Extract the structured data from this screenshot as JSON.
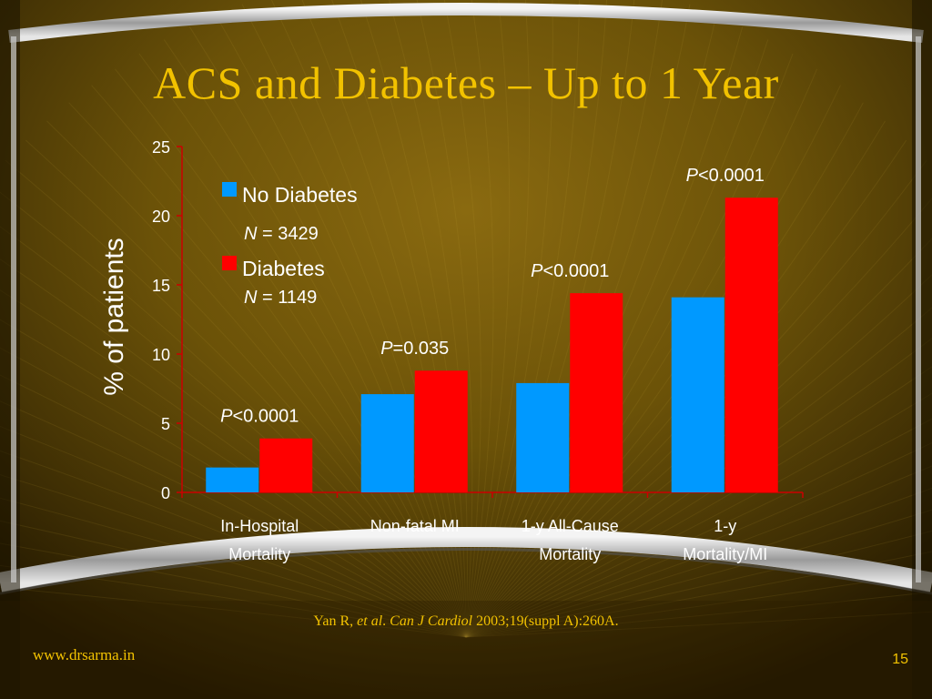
{
  "slide": {
    "title": "ACS and Diabetes – Up to 1 Year",
    "source_parts": [
      "Yan R, ",
      "et al",
      ". ",
      "Can J Cardiol",
      " 2003;19(suppl A):260A."
    ],
    "footer_url": "www.drsarma.in",
    "page_number": "15",
    "colors": {
      "title": "#f2c200",
      "axis": "#cc0000",
      "text": "#ffffff"
    }
  },
  "chart_data": {
    "type": "bar",
    "ylabel": "% of patients",
    "ylim": [
      0,
      25
    ],
    "yticks": [
      "0",
      "5",
      "10",
      "15",
      "20",
      "25"
    ],
    "categories": [
      [
        "In-Hospital",
        "Mortality"
      ],
      [
        "Non-fatal MI",
        ""
      ],
      [
        "1-y All-Cause",
        "Mortality"
      ],
      [
        "1-y",
        "Mortality/MI"
      ]
    ],
    "series": [
      {
        "name": "No Diabetes",
        "n_label": "N",
        "n_value": " = 3429",
        "color": "#0099ff",
        "values": [
          1.8,
          7.1,
          7.9,
          14.1
        ]
      },
      {
        "name": "Diabetes",
        "n_label": "N",
        "n_value": " = 1149",
        "color": "#ff0000",
        "values": [
          3.9,
          8.8,
          14.4,
          21.3
        ]
      }
    ],
    "annotations": [
      {
        "p": "P",
        "text": "<0.0001"
      },
      {
        "p": "P",
        "text": "=0.035"
      },
      {
        "p": "P",
        "text": "<0.0001"
      },
      {
        "p": "P",
        "text": "<0.0001"
      }
    ],
    "legend_position": "top-left",
    "grid": false
  }
}
